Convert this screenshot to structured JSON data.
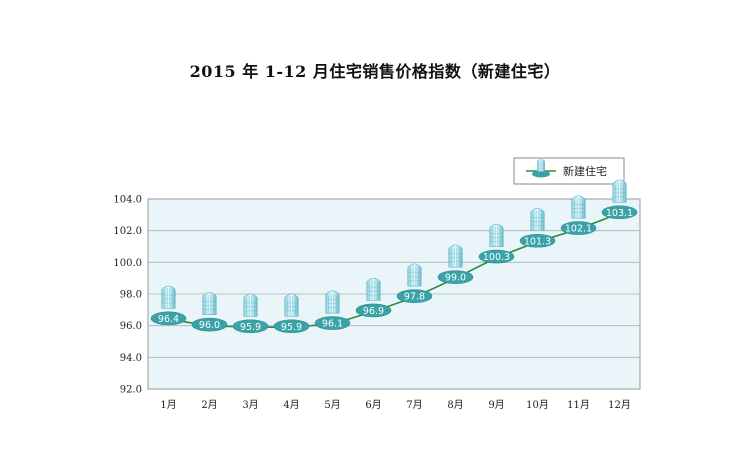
{
  "chart_data": {
    "type": "line",
    "title": "2015 年 1-12 月住宅销售价格指数（新建住宅）",
    "categories": [
      "1月",
      "2月",
      "3月",
      "4月",
      "5月",
      "6月",
      "7月",
      "8月",
      "9月",
      "10月",
      "11月",
      "12月"
    ],
    "series": [
      {
        "name": "新建住宅",
        "values": [
          96.4,
          96.0,
          95.9,
          95.9,
          96.1,
          96.9,
          97.8,
          99.0,
          100.3,
          101.3,
          102.1,
          103.1
        ],
        "labels": [
          "96.4",
          "96.0",
          "95.9",
          "95.9",
          "96.1",
          "96.9",
          "97.8",
          "99.0",
          "100.3",
          "101.3",
          "102.1",
          "103.1"
        ],
        "color": "#2e8b3a",
        "marker_icon": "building-icon"
      }
    ],
    "ylim": [
      92,
      104
    ],
    "yticks": [
      "92.0",
      "94.0",
      "96.0",
      "98.0",
      "100.0",
      "102.0",
      "104.0"
    ],
    "grid": true,
    "legend_position": "top-right",
    "plot_background": "#e9f5f8"
  }
}
